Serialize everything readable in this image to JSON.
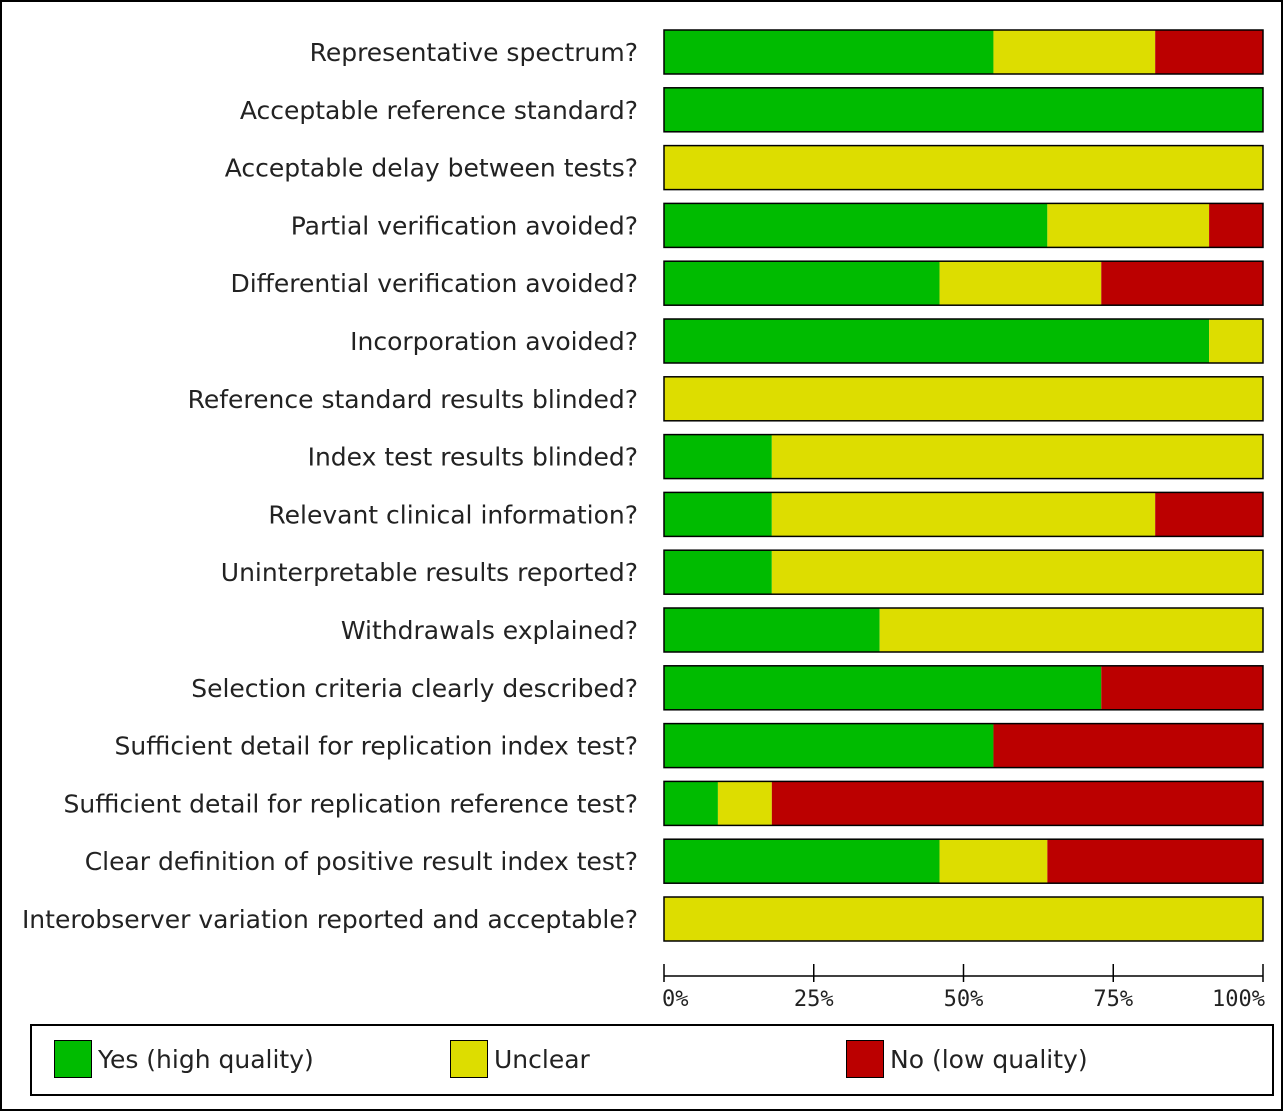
{
  "chart_data": {
    "type": "bar",
    "stacked": true,
    "orientation": "horizontal",
    "categories": [
      "Representative spectrum?",
      "Acceptable reference standard?",
      "Acceptable delay between tests?",
      "Partial verification avoided?",
      "Differential verification avoided?",
      "Incorporation avoided?",
      "Reference standard results blinded?",
      "Index test results blinded?",
      "Relevant clinical information?",
      "Uninterpretable results reported?",
      "Withdrawals explained?",
      "Selection criteria clearly described?",
      "Sufficient detail for replication index test?",
      "Sufficient detail for replication reference test?",
      "Clear definition of positive result index test?",
      "Interobserver variation reported and acceptable?"
    ],
    "series": [
      {
        "name": "Yes (high quality)",
        "color": "#00bb00",
        "values": [
          55,
          100,
          0,
          64,
          46,
          91,
          0,
          18,
          18,
          18,
          36,
          73,
          55,
          9,
          46,
          0
        ]
      },
      {
        "name": "Unclear",
        "color": "#dddd00",
        "values": [
          27,
          0,
          100,
          27,
          27,
          9,
          100,
          82,
          64,
          82,
          64,
          0,
          0,
          9,
          18,
          100
        ]
      },
      {
        "name": "No (low quality)",
        "color": "#bb0000",
        "values": [
          18,
          0,
          0,
          9,
          27,
          0,
          0,
          0,
          18,
          0,
          0,
          27,
          45,
          82,
          36,
          0
        ]
      }
    ],
    "xlim": [
      0,
      100
    ],
    "xticks": [
      0,
      25,
      50,
      75,
      100
    ],
    "xtick_labels": [
      "0%",
      "25%",
      "50%",
      "75%",
      "100%"
    ],
    "legend_position": "bottom",
    "grid": false
  }
}
